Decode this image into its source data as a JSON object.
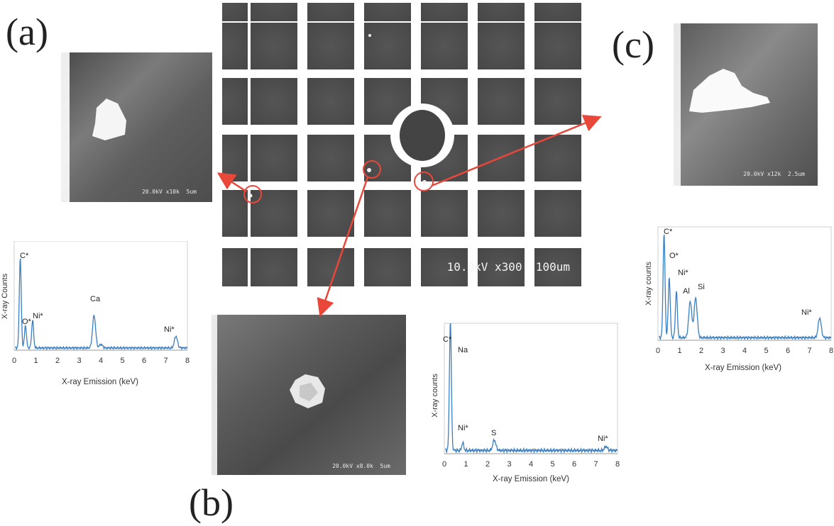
{
  "panels": {
    "a": {
      "label": "(a)",
      "sem_scalebar": "20.0kV x10k  5um",
      "spectrum": {
        "ylabel": "X-ray Counts",
        "xlabel": "X-ray Emission (keV)",
        "ticks": [
          "0",
          "1",
          "2",
          "3",
          "4",
          "5",
          "6",
          "7",
          "8"
        ],
        "peaks": [
          "C*",
          "O*",
          "Ni*",
          "Ca",
          "Ni*"
        ]
      }
    },
    "b": {
      "label": "(b)",
      "sem_scalebar": "20.0kV x8.0k  5um",
      "spectrum": {
        "ylabel": "X-ray counts",
        "xlabel": "X-ray Emission (keV)",
        "ticks": [
          "0",
          "1",
          "2",
          "3",
          "4",
          "5",
          "6",
          "7",
          "8"
        ],
        "peaks": [
          "C*",
          "Na",
          "Ni*",
          "S",
          "Ni*"
        ]
      }
    },
    "c": {
      "label": "(c)",
      "sem_scalebar": "20.0kV x12k  2.5um",
      "spectrum": {
        "ylabel": "X-ray counts",
        "xlabel": "X-ray Emission (keV)",
        "ticks": [
          "0",
          "1",
          "2",
          "3",
          "4",
          "5",
          "6",
          "7",
          "8"
        ],
        "peaks": [
          "C*",
          "O*",
          "Ni*",
          "Al",
          "Si",
          "Ni*"
        ]
      }
    }
  },
  "center": {
    "scalebar": "10.0kV x300  100um"
  },
  "colors": {
    "spectrum_line": "#3a7fc1",
    "arrow": "#e8473a",
    "grid_cell": "#505050",
    "grid_bar": "#ffffff"
  },
  "chart_data": [
    {
      "type": "line",
      "xlabel": "X-ray Emission (keV)",
      "ylabel": "X-ray Counts",
      "xlim": [
        0,
        8
      ],
      "series": [
        {
          "x": [
            0.28,
            0.52,
            0.85,
            3.69,
            4.01,
            7.47
          ],
          "values": [
            100,
            25,
            31,
            36,
            4,
            13
          ]
        }
      ],
      "annotations": [
        "C*",
        "O*",
        "Ni*",
        "Ca",
        "Ni*"
      ]
    },
    {
      "type": "line",
      "xlabel": "X-ray Emission (keV)",
      "ylabel": "X-ray counts",
      "xlim": [
        0,
        8
      ],
      "series": [
        {
          "x": [
            0.28,
            1.04,
            0.85,
            2.31,
            7.47
          ],
          "values": [
            100,
            0,
            6,
            8,
            3
          ]
        }
      ],
      "annotations": [
        "C*",
        "Na",
        "Ni*",
        "S",
        "Ni*"
      ]
    },
    {
      "type": "line",
      "xlabel": "X-ray Emission (keV)",
      "ylabel": "X-ray counts",
      "xlim": [
        0,
        8
      ],
      "series": [
        {
          "x": [
            0.28,
            0.52,
            0.85,
            1.49,
            1.74,
            7.47
          ],
          "values": [
            100,
            58,
            45,
            35,
            38,
            19
          ]
        }
      ],
      "annotations": [
        "C*",
        "O*",
        "Ni*",
        "Al",
        "Si",
        "Ni*"
      ]
    }
  ]
}
